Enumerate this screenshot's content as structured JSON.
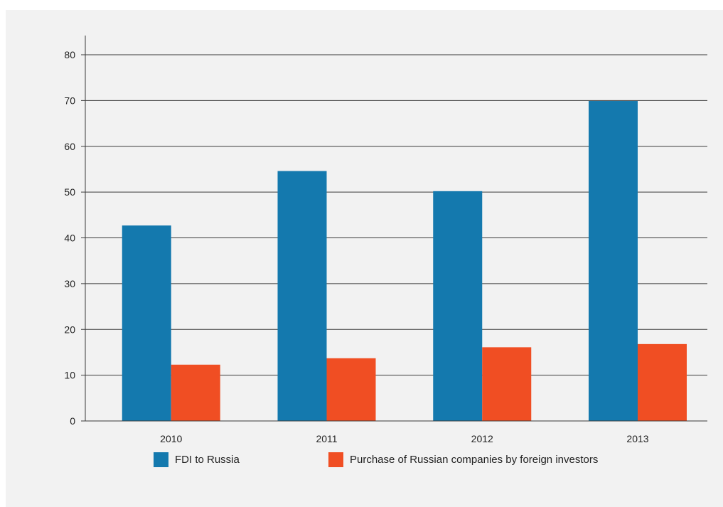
{
  "chart_data": {
    "type": "bar",
    "categories": [
      "2010",
      "2011",
      "2012",
      "2013"
    ],
    "series": [
      {
        "name": "FDI to Russia",
        "values": [
          42.7,
          54.6,
          50.2,
          69.9
        ],
        "color": "#1479ae"
      },
      {
        "name": "Purchase of Russian companies by foreign investors",
        "values": [
          12.3,
          13.7,
          16.1,
          16.8
        ],
        "color": "#f04e23"
      }
    ],
    "yticks": [
      "0",
      "10",
      "20",
      "30",
      "40",
      "50",
      "60",
      "70",
      "80"
    ],
    "ylim": [
      0,
      80
    ],
    "grid": true,
    "legend_position": "bottom"
  }
}
